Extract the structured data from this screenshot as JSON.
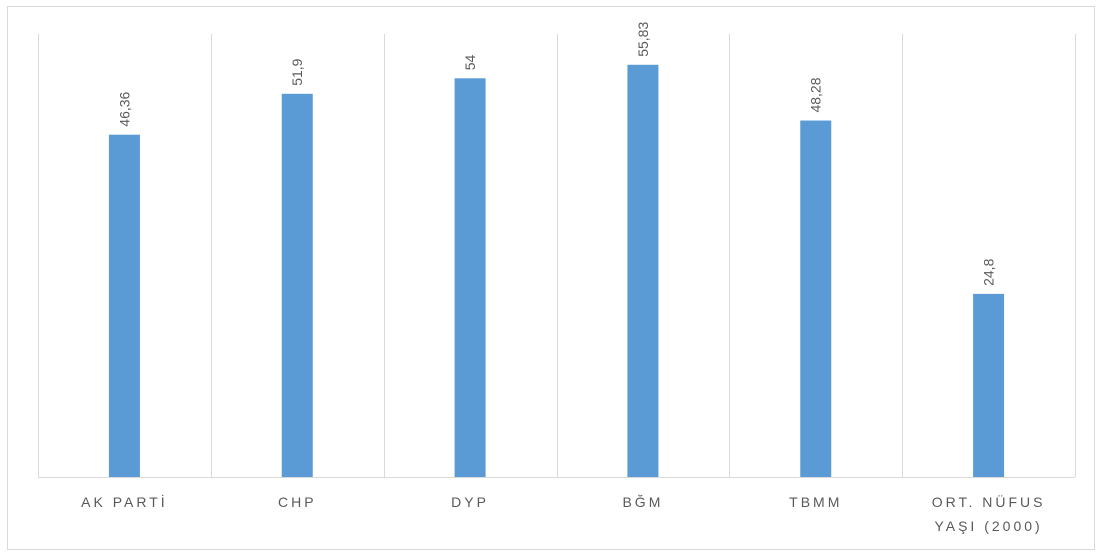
{
  "chart_data": {
    "type": "bar",
    "categories": [
      [
        "AK PARTİ"
      ],
      [
        "CHP"
      ],
      [
        "DYP"
      ],
      [
        "BĞM"
      ],
      [
        "TBMM"
      ],
      [
        "ORT. NÜFUS",
        "YAŞI (2000)"
      ]
    ],
    "values": [
      46.36,
      51.9,
      54,
      55.83,
      48.28,
      24.8
    ],
    "value_labels": [
      "46,36",
      "51,9",
      "54",
      "55,83",
      "48,28",
      "24,8"
    ],
    "ylim": [
      0,
      60
    ],
    "grid": "vertical category separators",
    "bar_color": "#5b9bd5",
    "axis_color": "#d9d9d9",
    "text_color": "#595959"
  }
}
